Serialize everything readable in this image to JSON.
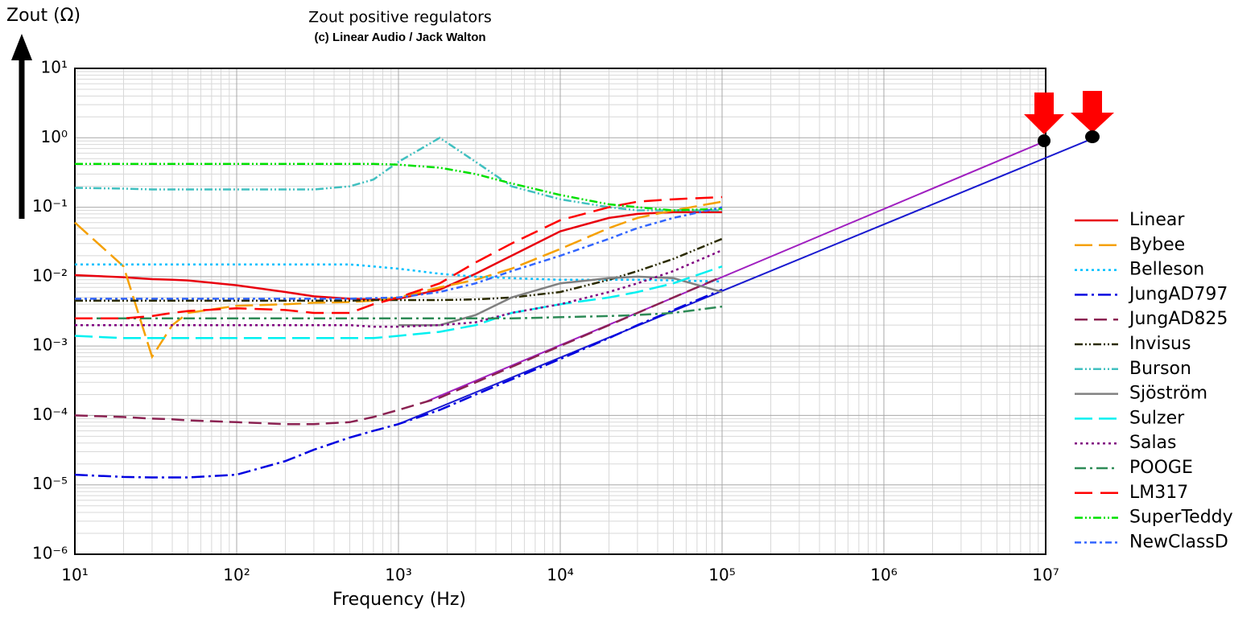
{
  "chart_data": {
    "type": "line",
    "title": "Zout positive regulators",
    "subtitle": "(c) Linear Audio / Jack Walton",
    "x_label": "Frequency (Hz)",
    "y_label": "Zout (Ω)",
    "log_x": true,
    "log_y": true,
    "grid": true,
    "legend": "right",
    "xlim": [
      10,
      10000000
    ],
    "ylim": [
      1e-06,
      10
    ],
    "xticks": [
      {
        "value": 10,
        "label": "10¹"
      },
      {
        "value": 100,
        "label": "10²"
      },
      {
        "value": 1000,
        "label": "10³"
      },
      {
        "value": 10000,
        "label": "10⁴"
      },
      {
        "value": 100000,
        "label": "10⁵"
      },
      {
        "value": 1000000,
        "label": "10⁶"
      },
      {
        "value": 10000000,
        "label": "10⁷"
      }
    ],
    "yticks": [
      {
        "value": 10,
        "label": "10¹"
      },
      {
        "value": 1,
        "label": "10⁰"
      },
      {
        "value": 0.1,
        "label": "10⁻¹"
      },
      {
        "value": 0.01,
        "label": "10⁻²"
      },
      {
        "value": 0.001,
        "label": "10⁻³"
      },
      {
        "value": 0.0001,
        "label": "10⁻⁴"
      },
      {
        "value": 1e-05,
        "label": "10⁻⁵"
      },
      {
        "value": 1e-06,
        "label": "10⁻⁶"
      }
    ],
    "x": [
      10,
      20,
      30,
      40,
      50,
      100,
      200,
      300,
      500,
      700,
      1000,
      1800,
      3000,
      5000,
      10000,
      20000,
      30000,
      50000,
      100000
    ],
    "series": [
      {
        "name": "Linear",
        "color": "#e8000e",
        "dash": "",
        "values": [
          0.0105,
          0.0098,
          0.0092,
          0.009,
          0.0088,
          0.0075,
          0.006,
          0.0052,
          0.0048,
          0.0047,
          0.0048,
          0.0065,
          0.011,
          0.02,
          0.045,
          0.07,
          0.08,
          0.085,
          0.085
        ]
      },
      {
        "name": "Bybee",
        "color": "#f5a000",
        "dash": "22 8",
        "values": [
          0.06,
          0.014,
          0.0007,
          0.002,
          0.003,
          0.0038,
          0.004,
          0.0042,
          0.0043,
          0.0045,
          0.005,
          0.007,
          0.009,
          0.013,
          0.025,
          0.05,
          0.07,
          0.09,
          0.12
        ]
      },
      {
        "name": "Belleson",
        "color": "#00c0ff",
        "dash": "3 4",
        "values": [
          0.015,
          0.015,
          0.015,
          0.015,
          0.015,
          0.015,
          0.015,
          0.015,
          0.015,
          0.014,
          0.013,
          0.011,
          0.01,
          0.0095,
          0.009,
          0.009,
          0.009,
          0.0088,
          0.0085
        ]
      },
      {
        "name": "JungAD797",
        "color": "#0000e0",
        "dash": "16 5 3 5",
        "values": [
          1.4e-05,
          1.3e-05,
          1.28e-05,
          1.28e-05,
          1.28e-05,
          1.4e-05,
          2.2e-05,
          3.2e-05,
          4.8e-05,
          6e-05,
          7.5e-05,
          0.00012,
          0.0002,
          0.00033,
          0.00065,
          0.0013,
          0.002,
          0.0033,
          0.0065
        ]
      },
      {
        "name": "JungAD825",
        "color": "#8b2252",
        "dash": "16 8",
        "values": [
          0.0001,
          9.5e-05,
          9e-05,
          8.8e-05,
          8.5e-05,
          8e-05,
          7.5e-05,
          7.5e-05,
          8e-05,
          9.5e-05,
          0.00012,
          0.00018,
          0.0003,
          0.0005,
          0.001,
          0.002,
          0.003,
          0.005,
          0.01
        ]
      },
      {
        "name": "Invisus",
        "color": "#2b2b00",
        "dash": "10 3 2 3 2 3",
        "values": [
          0.0045,
          0.0045,
          0.0045,
          0.0045,
          0.0045,
          0.0045,
          0.0045,
          0.0045,
          0.0045,
          0.0046,
          0.0046,
          0.0046,
          0.0047,
          0.005,
          0.006,
          0.009,
          0.012,
          0.018,
          0.035
        ]
      },
      {
        "name": "Burson",
        "color": "#40c0c0",
        "dash": "10 3 2 3 2 3",
        "values": [
          0.19,
          0.185,
          0.18,
          0.18,
          0.18,
          0.18,
          0.18,
          0.18,
          0.2,
          0.25,
          0.45,
          1.0,
          0.45,
          0.2,
          0.13,
          0.1,
          0.09,
          0.09,
          0.09
        ]
      },
      {
        "name": "Sjöström",
        "color": "#808080",
        "dash": "",
        "values": [
          null,
          null,
          null,
          null,
          null,
          null,
          null,
          null,
          null,
          null,
          0.002,
          0.002,
          0.0028,
          0.005,
          0.008,
          0.0095,
          0.01,
          0.0095,
          0.006
        ]
      },
      {
        "name": "Sulzer",
        "color": "#00f0f0",
        "dash": "22 8",
        "values": [
          0.0014,
          0.0013,
          0.0013,
          0.0013,
          0.0013,
          0.0013,
          0.0013,
          0.0013,
          0.0013,
          0.0013,
          0.0014,
          0.0016,
          0.002,
          0.003,
          0.004,
          0.005,
          0.006,
          0.008,
          0.014
        ]
      },
      {
        "name": "Salas",
        "color": "#800080",
        "dash": "3 4",
        "values": [
          0.002,
          0.002,
          0.002,
          0.002,
          0.002,
          0.002,
          0.002,
          0.002,
          0.002,
          0.0019,
          0.0019,
          0.002,
          0.0022,
          0.003,
          0.004,
          0.006,
          0.008,
          0.012,
          0.024
        ]
      },
      {
        "name": "POOGE",
        "color": "#2e8b57",
        "dash": "14 5 3 5",
        "values": [
          0.0025,
          0.0025,
          0.0025,
          0.0025,
          0.0025,
          0.0025,
          0.0025,
          0.0025,
          0.0025,
          0.0025,
          0.0025,
          0.0025,
          0.0025,
          0.0025,
          0.0026,
          0.0027,
          0.0028,
          0.003,
          0.0037
        ]
      },
      {
        "name": "LM317",
        "color": "#ff0000",
        "dash": "22 10",
        "values": [
          0.0025,
          0.0025,
          0.0027,
          0.003,
          0.0032,
          0.0035,
          0.0033,
          0.003,
          0.003,
          0.004,
          0.005,
          0.008,
          0.016,
          0.03,
          0.065,
          0.1,
          0.12,
          0.13,
          0.14
        ]
      },
      {
        "name": "SuperTeddy",
        "color": "#00e000",
        "dash": "10 3 2 3 2 3",
        "values": [
          0.42,
          0.42,
          0.42,
          0.42,
          0.42,
          0.42,
          0.42,
          0.42,
          0.42,
          0.42,
          0.41,
          0.37,
          0.3,
          0.22,
          0.15,
          0.11,
          0.1,
          0.09,
          0.095
        ]
      },
      {
        "name": "NewClassD",
        "color": "#3366ff",
        "dash": "8 4 3 4",
        "values": [
          0.0048,
          0.0048,
          0.0048,
          0.0048,
          0.0048,
          0.0048,
          0.0048,
          0.0048,
          0.0048,
          0.0049,
          0.005,
          0.006,
          0.008,
          0.012,
          0.02,
          0.035,
          0.05,
          0.07,
          0.1
        ]
      }
    ],
    "extra_lines": [
      {
        "color": "#1a1ad0",
        "x": [
          1000,
          20000000
        ],
        "values": [
          7.5e-05,
          1.0
        ]
      },
      {
        "color": "#a020c0",
        "x": [
          1500,
          10000000
        ],
        "values": [
          0.00016,
          0.9
        ]
      }
    ]
  }
}
